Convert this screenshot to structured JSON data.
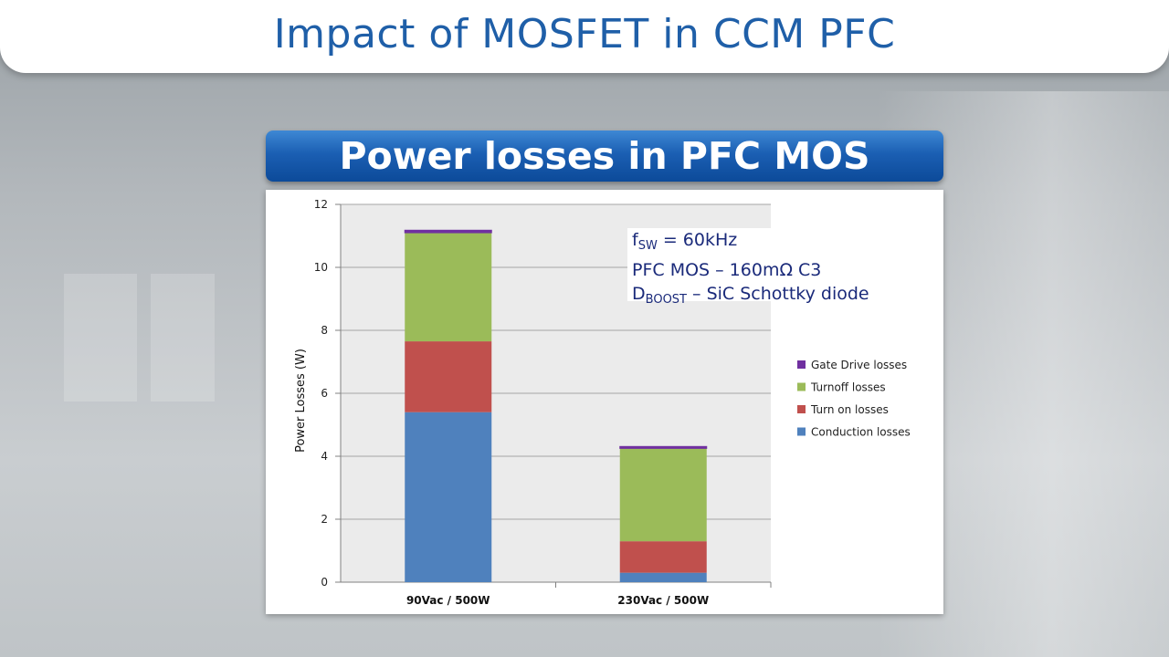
{
  "slide": {
    "title": "Impact of MOSFET in CCM PFC",
    "banner": "Power losses in PFC MOS"
  },
  "annotation": {
    "line1_main": "f",
    "line1_sub": "SW",
    "line1_rest": " = 60kHz",
    "line2": "PFC MOS – 160mΩ C3",
    "line3_main": "D",
    "line3_sub": "BOOST",
    "line3_rest": " – SiC Schottky diode"
  },
  "colors": {
    "conduction": "#4f81bd",
    "turn_on": "#c0504d",
    "turn_off": "#9bbb59",
    "gate_drive": "#7030a0",
    "plot_bg": "#ebebeb",
    "gridline": "#a6a6a6"
  },
  "chart_data": {
    "type": "bar",
    "stacked": true,
    "ylabel": "Power Losses (W)",
    "xlabel": "",
    "ylim": [
      0,
      12
    ],
    "yticks": [
      0,
      2,
      4,
      6,
      8,
      10,
      12
    ],
    "grid": true,
    "legend_position": "right",
    "categories": [
      "90Vac / 500W",
      "230Vac / 500W"
    ],
    "series": [
      {
        "name": "Conduction losses",
        "values": [
          5.4,
          0.3
        ]
      },
      {
        "name": "Turn on losses",
        "values": [
          2.25,
          1.0
        ]
      },
      {
        "name": "Turnoff losses",
        "values": [
          3.45,
          2.95
        ]
      },
      {
        "name": "Gate Drive losses",
        "values": [
          0.08,
          0.06
        ]
      }
    ]
  }
}
